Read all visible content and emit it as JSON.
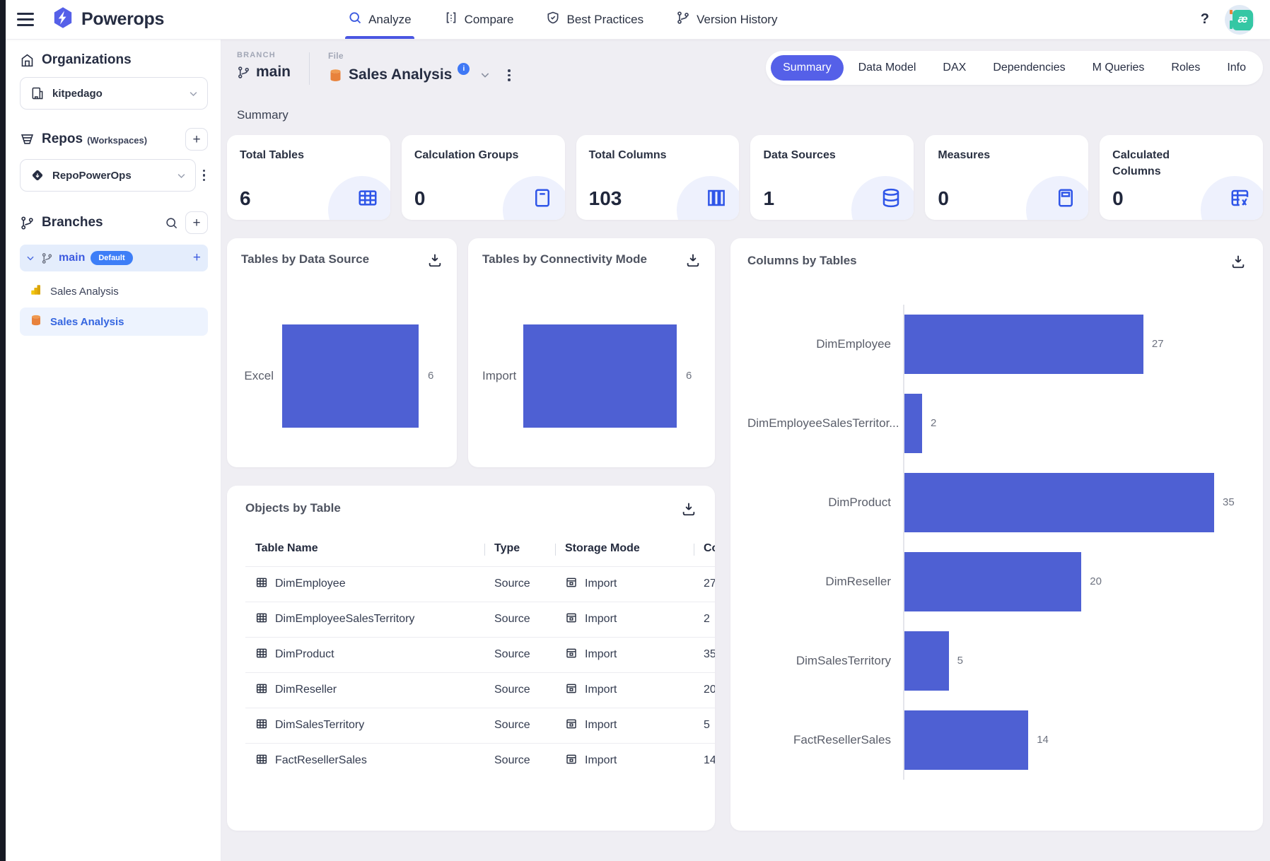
{
  "topbar": {
    "brand": "Powerops",
    "nav": [
      {
        "label": "Analyze",
        "icon": "search",
        "active": true
      },
      {
        "label": "Compare",
        "icon": "compare",
        "active": false
      },
      {
        "label": "Best Practices",
        "icon": "shield-check",
        "active": false
      },
      {
        "label": "Version History",
        "icon": "git-branch",
        "active": false
      }
    ],
    "help": "?",
    "avatar_text": "æ"
  },
  "sidebar": {
    "organizations_title": "Organizations",
    "organization_selected": "kitpedago",
    "repos_title": "Repos",
    "repos_subtitle": "(Workspaces)",
    "repo_selected": "RepoPowerOps",
    "branches_title": "Branches",
    "branch": {
      "name": "main",
      "badge": "Default"
    },
    "files": [
      {
        "name": "Sales Analysis",
        "icon": "powerbi",
        "selected": false
      },
      {
        "name": "Sales Analysis",
        "icon": "database-orange",
        "selected": true
      }
    ]
  },
  "header": {
    "branch_label": "BRANCH",
    "branch_value": "main",
    "file_label": "File",
    "file_value": "Sales Analysis",
    "tabs": [
      {
        "label": "Summary",
        "active": true
      },
      {
        "label": "Data Model",
        "active": false
      },
      {
        "label": "DAX",
        "active": false
      },
      {
        "label": "Dependencies",
        "active": false
      },
      {
        "label": "M Queries",
        "active": false
      },
      {
        "label": "Roles",
        "active": false
      },
      {
        "label": "Info",
        "active": false
      }
    ]
  },
  "summary": {
    "title": "Summary",
    "stats": [
      {
        "label": "Total Tables",
        "value": "6",
        "icon": "table"
      },
      {
        "label": "Calculation Groups",
        "value": "0",
        "icon": "calc-doc"
      },
      {
        "label": "Total Columns",
        "value": "103",
        "icon": "columns"
      },
      {
        "label": "Data Sources",
        "value": "1",
        "icon": "database"
      },
      {
        "label": "Measures",
        "value": "0",
        "icon": "calculator"
      },
      {
        "label": "Calculated Columns",
        "value": "0",
        "icon": "table-fx"
      }
    ]
  },
  "chart_data": [
    {
      "type": "bar",
      "orientation": "horizontal",
      "title": "Tables by Data Source",
      "categories": [
        "Excel"
      ],
      "values": [
        6
      ],
      "xlim": [
        0,
        6
      ],
      "grid": false,
      "legend": false
    },
    {
      "type": "bar",
      "orientation": "horizontal",
      "title": "Tables by Connectivity Mode",
      "categories": [
        "Import"
      ],
      "values": [
        6
      ],
      "xlim": [
        0,
        6
      ],
      "grid": false,
      "legend": false
    },
    {
      "type": "bar",
      "orientation": "horizontal",
      "title": "Columns by Tables",
      "categories": [
        "DimEmployee",
        "DimEmployeeSalesTerritor...",
        "DimProduct",
        "DimReseller",
        "DimSalesTerritory",
        "FactResellerSales"
      ],
      "values": [
        27,
        2,
        35,
        20,
        5,
        14
      ],
      "xlim": [
        0,
        35
      ],
      "grid": false,
      "legend": false
    }
  ],
  "objects_table": {
    "title": "Objects by Table",
    "columns": [
      "Table Name",
      "Type",
      "Storage Mode",
      "Columns"
    ],
    "rows": [
      {
        "name": "DimEmployee",
        "type": "Source",
        "storage": "Import",
        "columns": "27"
      },
      {
        "name": "DimEmployeeSalesTerritory",
        "type": "Source",
        "storage": "Import",
        "columns": "2"
      },
      {
        "name": "DimProduct",
        "type": "Source",
        "storage": "Import",
        "columns": "35"
      },
      {
        "name": "DimReseller",
        "type": "Source",
        "storage": "Import",
        "columns": "20"
      },
      {
        "name": "DimSalesTerritory",
        "type": "Source",
        "storage": "Import",
        "columns": "5"
      },
      {
        "name": "FactResellerSales",
        "type": "Source",
        "storage": "Import",
        "columns": "14"
      }
    ]
  },
  "colors": {
    "accent": "#5560E8",
    "bar": "#4E60D3",
    "default_badge": "#3D7EF7",
    "info_badge": "#3F78F5",
    "selected_text": "#3566E0",
    "background": "#EFEEF3"
  }
}
